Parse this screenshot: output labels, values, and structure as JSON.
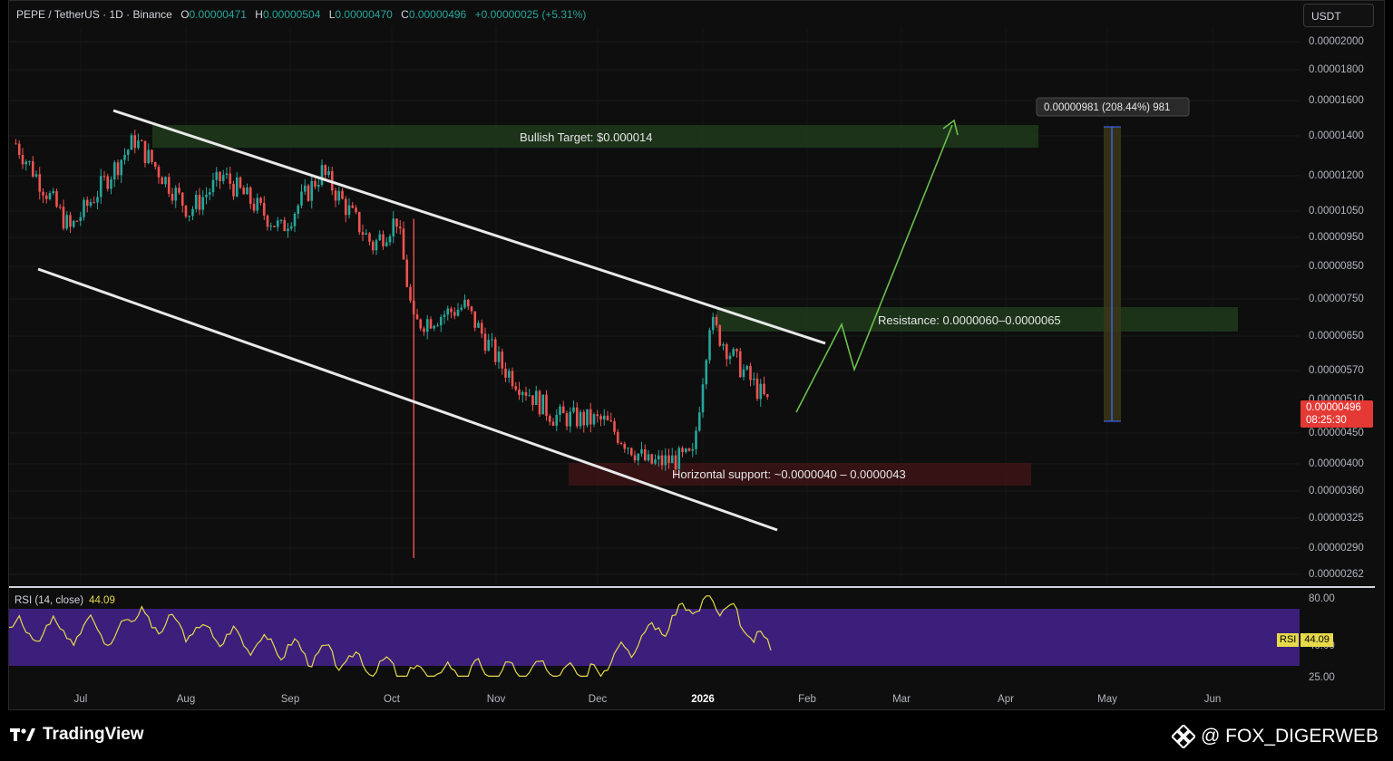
{
  "header": {
    "symbol": "PEPE / TetherUS · 1D · Binance",
    "open_label": "O",
    "open": "0.00000471",
    "high_label": "H",
    "high": "0.00000504",
    "low_label": "L",
    "low": "0.00000470",
    "close_label": "C",
    "close": "0.00000496",
    "change": "+0.00000025 (+5.31%)",
    "currency": "USDT"
  },
  "price_axis": [
    "0.00002000",
    "0.00001800",
    "0.00001600",
    "0.00001400",
    "0.00001200",
    "0.00001050",
    "0.00000950",
    "0.00000850",
    "0.00000750",
    "0.00000650",
    "0.00000570",
    "0.00000510",
    "0.00000450",
    "0.00000400",
    "0.00000360",
    "0.00000325",
    "0.00000290",
    "0.00000262"
  ],
  "current_price": {
    "value": "0.00000496",
    "countdown": "08:25:30"
  },
  "annotations": {
    "bullish_target": "Bullish Target: $0.000014",
    "resistance": "Resistance: 0.0000060–0.0000065",
    "support": "Horizontal support: ~0.0000040 – 0.0000043",
    "measure": "0.00000981 (208.44%) 981"
  },
  "rsi": {
    "label": "RSI (14, close)",
    "value": "44.09",
    "tag_label": "RSI",
    "axis": [
      "80.00",
      "40.00",
      "25.00"
    ]
  },
  "time_axis": [
    {
      "label": "Jul",
      "bold": false
    },
    {
      "label": "Aug",
      "bold": false
    },
    {
      "label": "Sep",
      "bold": false
    },
    {
      "label": "Oct",
      "bold": false
    },
    {
      "label": "Nov",
      "bold": false
    },
    {
      "label": "Dec",
      "bold": false
    },
    {
      "label": "2026",
      "bold": true
    },
    {
      "label": "Feb",
      "bold": false
    },
    {
      "label": "Mar",
      "bold": false
    },
    {
      "label": "Apr",
      "bold": false
    },
    {
      "label": "May",
      "bold": false
    },
    {
      "label": "Jun",
      "bold": false
    }
  ],
  "footer": {
    "brand": "TradingView",
    "handle": "@ FOX_DIGERWEB"
  },
  "colors": {
    "up": "#26a69a",
    "down": "#ef5350",
    "rsi_band": "#3b1f7a",
    "rsi_line": "#e6d94a",
    "projection": "#6abf4b"
  },
  "chart_data": {
    "type": "candlestick",
    "symbol": "PEPE/USDT",
    "interval": "1D",
    "scale": "log",
    "approx_closes": [
      {
        "date": "2025-06-15",
        "close": 1.36e-05
      },
      {
        "date": "2025-07-01",
        "close": 9.8e-06
      },
      {
        "date": "2025-07-20",
        "close": 1.38e-05
      },
      {
        "date": "2025-08-05",
        "close": 1.05e-05
      },
      {
        "date": "2025-08-15",
        "close": 1.2e-05
      },
      {
        "date": "2025-09-01",
        "close": 9.8e-06
      },
      {
        "date": "2025-09-13",
        "close": 1.22e-05
      },
      {
        "date": "2025-09-28",
        "close": 9.2e-06
      },
      {
        "date": "2025-10-05",
        "close": 1.02e-05
      },
      {
        "date": "2025-10-10",
        "close": 6.8e-06
      },
      {
        "date": "2025-10-25",
        "close": 7.3e-06
      },
      {
        "date": "2025-11-05",
        "close": 5.8e-06
      },
      {
        "date": "2025-11-20",
        "close": 4.8e-06
      },
      {
        "date": "2025-12-05",
        "close": 4.7e-06
      },
      {
        "date": "2025-12-18",
        "close": 4e-06
      },
      {
        "date": "2025-12-31",
        "close": 4.1e-06
      },
      {
        "date": "2026-01-05",
        "close": 6.9e-06
      },
      {
        "date": "2026-01-12",
        "close": 6e-06
      },
      {
        "date": "2026-01-23",
        "close": 4.96e-06
      }
    ],
    "rsi_series": [
      {
        "date": "2025-07-20",
        "value": 66
      },
      {
        "date": "2025-10-10",
        "value": 28
      },
      {
        "date": "2025-12-01",
        "value": 30
      },
      {
        "date": "2026-01-05",
        "value": 82
      },
      {
        "date": "2026-01-23",
        "value": 44.09
      }
    ],
    "levels": {
      "bullish_target": 1.4e-05,
      "resistance": [
        6e-06,
        6.5e-06
      ],
      "support": [
        4e-06,
        4.3e-06
      ]
    }
  }
}
